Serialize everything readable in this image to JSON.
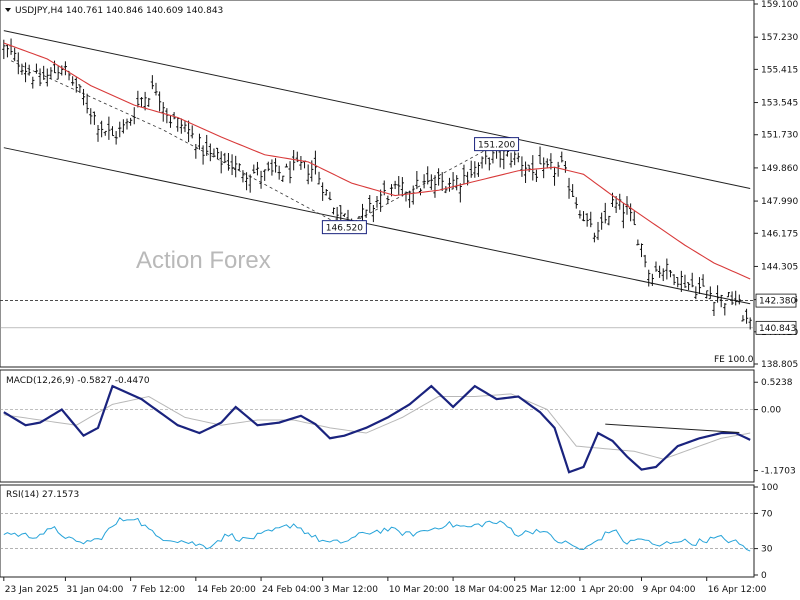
{
  "watermark": "Action Forex",
  "main": {
    "header": "USDJPY,H4  140.761 140.846 140.609 140.843",
    "ylim": [
      138.805,
      159.1
    ],
    "ticks": [
      "159.100",
      "157.230",
      "155.415",
      "153.545",
      "151.730",
      "149.860",
      "147.990",
      "146.175",
      "144.305",
      "142.435",
      "140.620",
      "138.805"
    ],
    "hline_value": 142.38,
    "hline_label": "142.380",
    "price_value": 140.843,
    "price_label": "140.843",
    "annotations": [
      {
        "text": "151.200",
        "bar": 136,
        "value": 151.2
      },
      {
        "text": "146.520",
        "bar": 94,
        "value": 146.52
      }
    ],
    "fe_label": "FE 100.0",
    "ma_name": "",
    "channel": {
      "upper": [
        {
          "bar": 0,
          "value": 157.6
        },
        {
          "bar": 206,
          "value": 148.7
        }
      ],
      "lower": [
        {
          "bar": 0,
          "value": 151.0
        },
        {
          "bar": 206,
          "value": 142.2
        }
      ]
    },
    "zigzag": [
      {
        "bar": 2,
        "value": 155.9
      },
      {
        "bar": 44,
        "value": 152.0
      },
      {
        "bar": 94,
        "value": 146.52
      },
      {
        "bar": 136,
        "value": 151.2
      }
    ]
  },
  "macd": {
    "header": "MACD(12,26,9) -0.5827 -0.4470",
    "ylim": [
      -1.35,
      0.72
    ],
    "ticks": [
      "0.5238",
      "0.00",
      "-1.1703"
    ],
    "tick_values": [
      0.5238,
      0.0,
      -1.1703
    ],
    "hline": 0.0,
    "trendline": [
      {
        "bar": 166,
        "value": -0.28
      },
      {
        "bar": 203,
        "value": -0.44
      }
    ]
  },
  "rsi": {
    "header": "RSI(14) 27.1573",
    "ylim": [
      0,
      100
    ],
    "ticks": [
      "100",
      "70",
      "30",
      "0"
    ],
    "tick_values": [
      100,
      70,
      30,
      0
    ],
    "levels": [
      70,
      30
    ]
  },
  "xaxis": {
    "bars_total": 207,
    "labels": [
      {
        "text": "23 Jan 2025",
        "bar": 0
      },
      {
        "text": "31 Jan 04:00",
        "bar": 17
      },
      {
        "text": "7 Feb 12:00",
        "bar": 35
      },
      {
        "text": "14 Feb 20:00",
        "bar": 53
      },
      {
        "text": "24 Feb 04:00",
        "bar": 71
      },
      {
        "text": "3 Mar 12:00",
        "bar": 88
      },
      {
        "text": "10 Mar 20:00",
        "bar": 106
      },
      {
        "text": "18 Mar 04:00",
        "bar": 124
      },
      {
        "text": "25 Mar 12:00",
        "bar": 141
      },
      {
        "text": "1 Apr 20:00",
        "bar": 159
      },
      {
        "text": "9 Apr 04:00",
        "bar": 176
      },
      {
        "text": "16 Apr 12:00",
        "bar": 194
      }
    ]
  },
  "colors": {
    "bars": "#111111",
    "ma": "#d83a3a",
    "macd_main": "#1a237e",
    "macd_signal": "#b8b8b8",
    "rsi": "#26a3d9",
    "annotation_box": "#1a237e"
  },
  "chart_data": {
    "type": "line",
    "symbol": "USDJPY",
    "timeframe": "H4",
    "ohlc_last": {
      "open": 140.761,
      "high": 140.846,
      "low": 140.609,
      "close": 140.843
    },
    "anchors_close": [
      [
        0,
        156.6
      ],
      [
        6,
        155.5
      ],
      [
        10,
        154.7
      ],
      [
        16,
        155.6
      ],
      [
        20,
        154.4
      ],
      [
        26,
        152.4
      ],
      [
        30,
        151.6
      ],
      [
        34,
        152.3
      ],
      [
        38,
        153.8
      ],
      [
        42,
        154.4
      ],
      [
        46,
        152.6
      ],
      [
        50,
        152.2
      ],
      [
        56,
        150.6
      ],
      [
        62,
        150.1
      ],
      [
        66,
        149.7
      ],
      [
        72,
        149.5
      ],
      [
        78,
        149.6
      ],
      [
        82,
        149.9
      ],
      [
        86,
        149.8
      ],
      [
        90,
        148.0
      ],
      [
        94,
        147.1
      ],
      [
        100,
        147.2
      ],
      [
        104,
        148.3
      ],
      [
        110,
        148.6
      ],
      [
        116,
        148.9
      ],
      [
        120,
        149.0
      ],
      [
        126,
        149.2
      ],
      [
        130,
        149.8
      ],
      [
        134,
        150.4
      ],
      [
        138,
        150.6
      ],
      [
        142,
        150.4
      ],
      [
        146,
        149.6
      ],
      [
        150,
        149.7
      ],
      [
        154,
        149.9
      ],
      [
        158,
        148.0
      ],
      [
        162,
        146.3
      ],
      [
        164,
        146.0
      ],
      [
        168,
        147.8
      ],
      [
        172,
        147.5
      ],
      [
        176,
        145.5
      ],
      [
        178,
        144.0
      ],
      [
        182,
        144.2
      ],
      [
        186,
        143.7
      ],
      [
        190,
        143.2
      ],
      [
        194,
        142.9
      ],
      [
        198,
        142.5
      ],
      [
        202,
        142.4
      ],
      [
        206,
        140.84
      ]
    ],
    "ma_anchors": [
      [
        0,
        156.9
      ],
      [
        12,
        156.0
      ],
      [
        24,
        154.5
      ],
      [
        36,
        153.4
      ],
      [
        48,
        152.7
      ],
      [
        60,
        151.6
      ],
      [
        72,
        150.6
      ],
      [
        84,
        150.2
      ],
      [
        96,
        149.0
      ],
      [
        108,
        148.3
      ],
      [
        120,
        148.6
      ],
      [
        132,
        149.2
      ],
      [
        142,
        149.7
      ],
      [
        152,
        149.9
      ],
      [
        160,
        149.5
      ],
      [
        168,
        148.3
      ],
      [
        178,
        146.9
      ],
      [
        188,
        145.5
      ],
      [
        196,
        144.5
      ],
      [
        206,
        143.6
      ]
    ],
    "macd_anchors": [
      [
        0,
        -0.05
      ],
      [
        6,
        -0.3
      ],
      [
        10,
        -0.25
      ],
      [
        16,
        0.0
      ],
      [
        22,
        -0.5
      ],
      [
        26,
        -0.35
      ],
      [
        30,
        0.45
      ],
      [
        38,
        0.2
      ],
      [
        44,
        -0.1
      ],
      [
        48,
        -0.3
      ],
      [
        54,
        -0.45
      ],
      [
        60,
        -0.25
      ],
      [
        64,
        0.05
      ],
      [
        70,
        -0.3
      ],
      [
        76,
        -0.25
      ],
      [
        82,
        -0.12
      ],
      [
        86,
        -0.28
      ],
      [
        90,
        -0.55
      ],
      [
        94,
        -0.5
      ],
      [
        100,
        -0.35
      ],
      [
        106,
        -0.15
      ],
      [
        112,
        0.1
      ],
      [
        118,
        0.45
      ],
      [
        124,
        0.05
      ],
      [
        130,
        0.45
      ],
      [
        136,
        0.2
      ],
      [
        142,
        0.25
      ],
      [
        148,
        -0.05
      ],
      [
        152,
        -0.35
      ],
      [
        156,
        -1.2
      ],
      [
        160,
        -1.1
      ],
      [
        164,
        -0.45
      ],
      [
        168,
        -0.6
      ],
      [
        172,
        -0.9
      ],
      [
        176,
        -1.15
      ],
      [
        180,
        -1.1
      ],
      [
        186,
        -0.7
      ],
      [
        192,
        -0.55
      ],
      [
        198,
        -0.45
      ],
      [
        202,
        -0.45
      ],
      [
        206,
        -0.58
      ]
    ],
    "macd_signal_anchors": [
      [
        0,
        -0.1
      ],
      [
        10,
        -0.2
      ],
      [
        20,
        -0.3
      ],
      [
        30,
        0.1
      ],
      [
        40,
        0.25
      ],
      [
        50,
        -0.15
      ],
      [
        60,
        -0.3
      ],
      [
        70,
        -0.2
      ],
      [
        80,
        -0.2
      ],
      [
        90,
        -0.35
      ],
      [
        100,
        -0.45
      ],
      [
        110,
        -0.15
      ],
      [
        120,
        0.25
      ],
      [
        130,
        0.25
      ],
      [
        140,
        0.3
      ],
      [
        150,
        0.0
      ],
      [
        158,
        -0.7
      ],
      [
        166,
        -0.75
      ],
      [
        174,
        -0.8
      ],
      [
        182,
        -0.95
      ],
      [
        190,
        -0.75
      ],
      [
        198,
        -0.55
      ],
      [
        206,
        -0.45
      ]
    ],
    "rsi_anchors": [
      [
        0,
        48
      ],
      [
        8,
        44
      ],
      [
        14,
        52
      ],
      [
        20,
        36
      ],
      [
        26,
        40
      ],
      [
        32,
        62
      ],
      [
        36,
        66
      ],
      [
        42,
        44
      ],
      [
        50,
        38
      ],
      [
        56,
        32
      ],
      [
        62,
        46
      ],
      [
        66,
        40
      ],
      [
        70,
        44
      ],
      [
        76,
        52
      ],
      [
        80,
        58
      ],
      [
        86,
        42
      ],
      [
        90,
        36
      ],
      [
        94,
        38
      ],
      [
        100,
        48
      ],
      [
        106,
        52
      ],
      [
        112,
        46
      ],
      [
        118,
        52
      ],
      [
        122,
        58
      ],
      [
        128,
        54
      ],
      [
        134,
        60
      ],
      [
        138,
        58
      ],
      [
        142,
        46
      ],
      [
        148,
        52
      ],
      [
        152,
        40
      ],
      [
        156,
        35
      ],
      [
        160,
        28
      ],
      [
        164,
        40
      ],
      [
        168,
        52
      ],
      [
        172,
        36
      ],
      [
        176,
        42
      ],
      [
        180,
        32
      ],
      [
        186,
        40
      ],
      [
        190,
        36
      ],
      [
        194,
        40
      ],
      [
        198,
        42
      ],
      [
        202,
        37
      ],
      [
        206,
        27.16
      ]
    ]
  }
}
